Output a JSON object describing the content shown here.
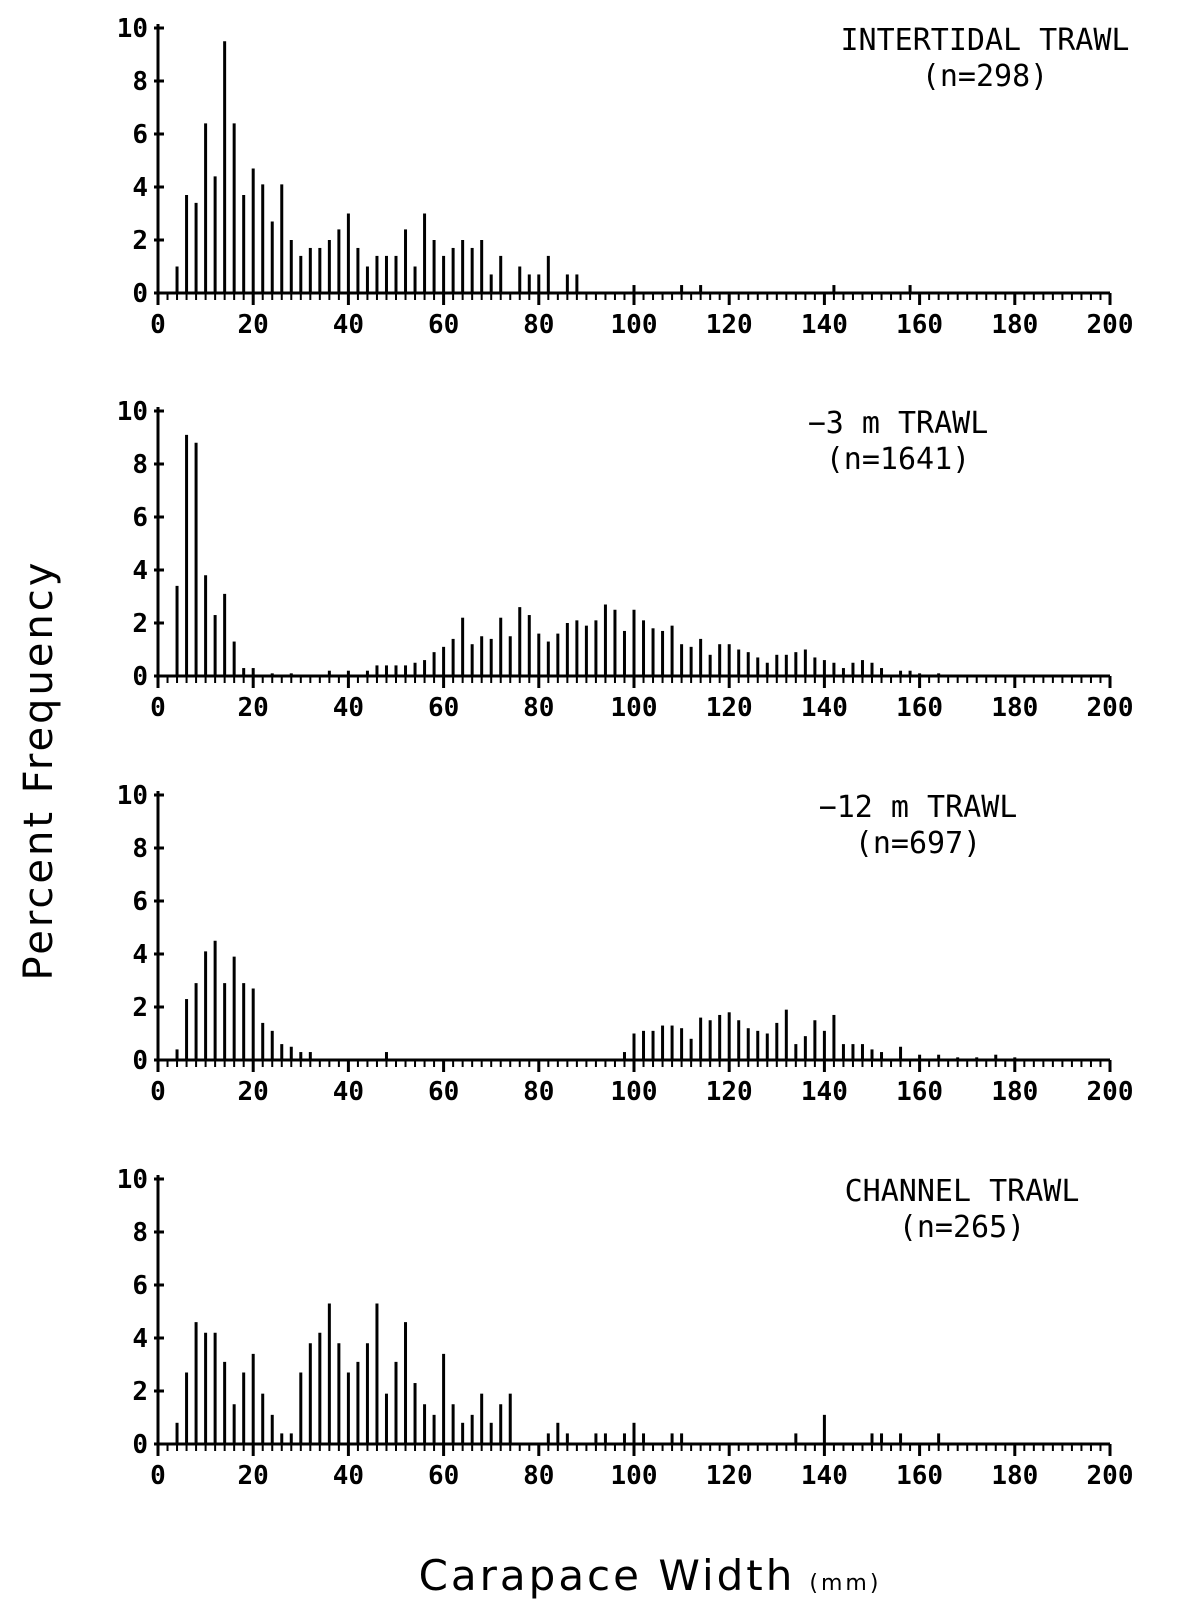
{
  "figure": {
    "ylabel": "Percent Frequency",
    "xlabel": "Carapace Width",
    "xlabel_unit": "(mm)"
  },
  "chart_data": [
    {
      "type": "bar",
      "title": "INTERTIDAL TRAWL",
      "subtitle": "(n=298)",
      "xlim": [
        0,
        200
      ],
      "ylim": [
        0,
        10
      ],
      "xticks": [
        0,
        20,
        40,
        60,
        80,
        100,
        120,
        140,
        160,
        180,
        200
      ],
      "yticks": [
        0,
        2,
        4,
        6,
        8,
        10
      ],
      "xlabel": "Carapace Width (mm)",
      "ylabel": "Percent Frequency",
      "x": [
        4,
        6,
        8,
        10,
        12,
        14,
        16,
        18,
        20,
        22,
        24,
        26,
        28,
        30,
        32,
        34,
        36,
        38,
        40,
        42,
        44,
        46,
        48,
        50,
        52,
        54,
        56,
        58,
        60,
        62,
        64,
        66,
        68,
        70,
        72,
        76,
        78,
        80,
        82,
        86,
        88,
        100,
        110,
        114,
        142,
        158
      ],
      "values": [
        1.0,
        3.7,
        3.4,
        6.4,
        4.4,
        9.5,
        6.4,
        3.7,
        4.7,
        4.1,
        2.7,
        4.1,
        2.0,
        1.4,
        1.7,
        1.7,
        2.0,
        2.4,
        3.0,
        1.7,
        1.0,
        1.4,
        1.4,
        1.4,
        2.4,
        1.0,
        3.0,
        2.0,
        1.4,
        1.7,
        2.0,
        1.7,
        2.0,
        0.7,
        1.4,
        1.0,
        0.7,
        0.7,
        1.4,
        0.7,
        0.7,
        0.3,
        0.3,
        0.3,
        0.3,
        0.3
      ]
    },
    {
      "type": "bar",
      "title": "−3 m TRAWL",
      "subtitle": "(n=1641)",
      "xlim": [
        0,
        200
      ],
      "ylim": [
        0,
        10
      ],
      "xticks": [
        0,
        20,
        40,
        60,
        80,
        100,
        120,
        140,
        160,
        180,
        200
      ],
      "yticks": [
        0,
        2,
        4,
        6,
        8,
        10
      ],
      "xlabel": "Carapace Width (mm)",
      "ylabel": "Percent Frequency",
      "x": [
        4,
        6,
        8,
        10,
        12,
        14,
        16,
        18,
        20,
        24,
        28,
        36,
        40,
        44,
        46,
        48,
        50,
        52,
        54,
        56,
        58,
        60,
        62,
        64,
        66,
        68,
        70,
        72,
        74,
        76,
        78,
        80,
        82,
        84,
        86,
        88,
        90,
        92,
        94,
        96,
        98,
        100,
        102,
        104,
        106,
        108,
        110,
        112,
        114,
        116,
        118,
        120,
        122,
        124,
        126,
        128,
        130,
        132,
        134,
        136,
        138,
        140,
        142,
        144,
        146,
        148,
        150,
        152,
        156,
        158,
        160,
        164
      ],
      "values": [
        3.4,
        9.1,
        8.8,
        3.8,
        2.3,
        3.1,
        1.3,
        0.3,
        0.3,
        0.1,
        0.1,
        0.2,
        0.2,
        0.2,
        0.4,
        0.4,
        0.4,
        0.4,
        0.5,
        0.6,
        0.9,
        1.1,
        1.4,
        2.2,
        1.2,
        1.5,
        1.4,
        2.2,
        1.5,
        2.6,
        2.3,
        1.6,
        1.3,
        1.6,
        2.0,
        2.1,
        1.9,
        2.1,
        2.7,
        2.5,
        1.7,
        2.5,
        2.1,
        1.8,
        1.7,
        1.9,
        1.2,
        1.1,
        1.4,
        0.8,
        1.2,
        1.2,
        1.0,
        0.9,
        0.7,
        0.5,
        0.8,
        0.8,
        0.9,
        1.0,
        0.7,
        0.6,
        0.5,
        0.3,
        0.5,
        0.6,
        0.5,
        0.3,
        0.2,
        0.2,
        0.1,
        0.1
      ]
    },
    {
      "type": "bar",
      "title": "−12 m TRAWL",
      "subtitle": "(n=697)",
      "xlim": [
        0,
        200
      ],
      "ylim": [
        0,
        10
      ],
      "xticks": [
        0,
        20,
        40,
        60,
        80,
        100,
        120,
        140,
        160,
        180,
        200
      ],
      "yticks": [
        0,
        2,
        4,
        6,
        8,
        10
      ],
      "xlabel": "Carapace Width (mm)",
      "ylabel": "Percent Frequency",
      "x": [
        4,
        6,
        8,
        10,
        12,
        14,
        16,
        18,
        20,
        22,
        24,
        26,
        28,
        30,
        32,
        48,
        98,
        100,
        102,
        104,
        106,
        108,
        110,
        112,
        114,
        116,
        118,
        120,
        122,
        124,
        126,
        128,
        130,
        132,
        134,
        136,
        138,
        140,
        142,
        144,
        146,
        148,
        150,
        152,
        156,
        160,
        164,
        168,
        172,
        176,
        180
      ],
      "values": [
        0.4,
        2.3,
        2.9,
        4.1,
        4.5,
        2.9,
        3.9,
        2.9,
        2.7,
        1.4,
        1.1,
        0.6,
        0.5,
        0.3,
        0.3,
        0.3,
        0.3,
        1.0,
        1.1,
        1.1,
        1.3,
        1.3,
        1.2,
        0.8,
        1.6,
        1.5,
        1.7,
        1.8,
        1.5,
        1.2,
        1.1,
        1.0,
        1.4,
        1.9,
        0.6,
        0.9,
        1.5,
        1.1,
        1.7,
        0.6,
        0.6,
        0.6,
        0.4,
        0.3,
        0.5,
        0.2,
        0.2,
        0.1,
        0.1,
        0.2,
        0.1
      ]
    },
    {
      "type": "bar",
      "title": "CHANNEL TRAWL",
      "subtitle": "(n=265)",
      "xlim": [
        0,
        200
      ],
      "ylim": [
        0,
        10
      ],
      "xticks": [
        0,
        20,
        40,
        60,
        80,
        100,
        120,
        140,
        160,
        180,
        200
      ],
      "yticks": [
        0,
        2,
        4,
        6,
        8,
        10
      ],
      "xlabel": "Carapace Width (mm)",
      "ylabel": "Percent Frequency",
      "x": [
        4,
        6,
        8,
        10,
        12,
        14,
        16,
        18,
        20,
        22,
        24,
        26,
        28,
        30,
        32,
        34,
        36,
        38,
        40,
        42,
        44,
        46,
        48,
        50,
        52,
        54,
        56,
        58,
        60,
        62,
        64,
        66,
        68,
        70,
        72,
        74,
        82,
        84,
        86,
        92,
        94,
        98,
        100,
        102,
        108,
        110,
        134,
        140,
        150,
        152,
        156,
        164
      ],
      "values": [
        0.8,
        2.7,
        4.6,
        4.2,
        4.2,
        3.1,
        1.5,
        2.7,
        3.4,
        1.9,
        1.1,
        0.4,
        0.4,
        2.7,
        3.8,
        4.2,
        5.3,
        3.8,
        2.7,
        3.1,
        3.8,
        5.3,
        1.9,
        3.1,
        4.6,
        2.3,
        1.5,
        1.1,
        3.4,
        1.5,
        0.8,
        1.1,
        1.9,
        0.8,
        1.5,
        1.9,
        0.4,
        0.8,
        0.4,
        0.4,
        0.4,
        0.4,
        0.8,
        0.4,
        0.4,
        0.4,
        0.4,
        1.1,
        0.4,
        0.4,
        0.4,
        0.4
      ]
    }
  ]
}
